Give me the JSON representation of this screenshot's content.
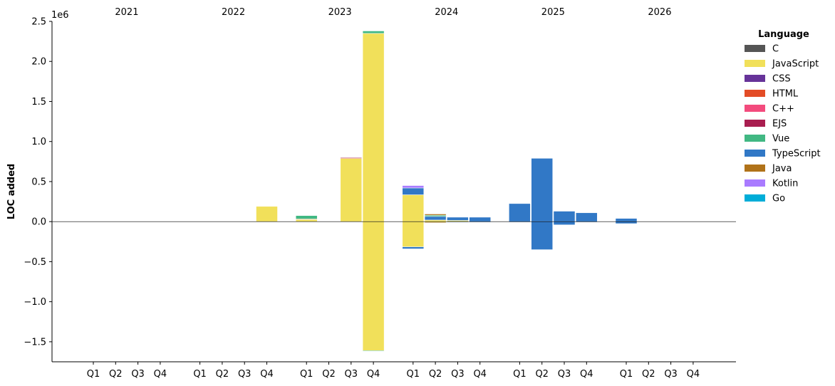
{
  "chart_data": {
    "type": "bar",
    "stacked": true,
    "ylabel": "LOC added",
    "y_offset_label": "1e6",
    "ylim": [
      -1750000,
      2500000
    ],
    "yticks": [
      -1500000,
      -1000000,
      -500000,
      0,
      500000,
      1000000,
      1500000,
      2000000,
      2500000
    ],
    "ytick_labels": [
      "−1.5",
      "−1.0",
      "−0.5",
      "0.0",
      "0.5",
      "1.0",
      "1.5",
      "2.0",
      "2.5"
    ],
    "years": [
      "2021",
      "2022",
      "2023",
      "2024",
      "2025",
      "2026"
    ],
    "quarters": [
      "Q1",
      "Q2",
      "Q3",
      "Q4"
    ],
    "legend": {
      "title": "Language",
      "placement": "outside-right",
      "entries": [
        {
          "name": "C",
          "color": "#555555"
        },
        {
          "name": "JavaScript",
          "color": "#f1e05a"
        },
        {
          "name": "CSS",
          "color": "#663399"
        },
        {
          "name": "HTML",
          "color": "#e34c26"
        },
        {
          "name": "C++",
          "color": "#f34b7d"
        },
        {
          "name": "EJS",
          "color": "#a91e50"
        },
        {
          "name": "Vue",
          "color": "#41b883"
        },
        {
          "name": "TypeScript",
          "color": "#3178c6"
        },
        {
          "name": "Java",
          "color": "#b07219"
        },
        {
          "name": "Kotlin",
          "color": "#a97bff"
        },
        {
          "name": "Go",
          "color": "#00add8"
        }
      ]
    },
    "bars": [
      {
        "year": "2022",
        "quarter": "Q4",
        "positive": [
          {
            "lang": "JavaScript",
            "value": 190000
          }
        ],
        "negative": []
      },
      {
        "year": "2023",
        "quarter": "Q1",
        "positive": [
          {
            "lang": "JavaScript",
            "value": 30000
          },
          {
            "lang": "HTML",
            "value": 3000
          },
          {
            "lang": "Vue",
            "value": 42000
          }
        ],
        "negative": []
      },
      {
        "year": "2023",
        "quarter": "Q3",
        "positive": [
          {
            "lang": "JavaScript",
            "value": 790000
          },
          {
            "lang": "HTML",
            "value": 5000
          },
          {
            "lang": "EJS",
            "value": 8000
          }
        ],
        "negative": []
      },
      {
        "year": "2023",
        "quarter": "Q4",
        "positive": [
          {
            "lang": "JavaScript",
            "value": 2350000
          },
          {
            "lang": "Vue",
            "value": 30000
          }
        ],
        "negative": [
          {
            "lang": "JavaScript",
            "value": -1610000
          },
          {
            "lang": "Vue",
            "value": -8000
          }
        ]
      },
      {
        "year": "2024",
        "quarter": "Q1",
        "positive": [
          {
            "lang": "JavaScript",
            "value": 335000
          },
          {
            "lang": "TypeScript",
            "value": 85000
          },
          {
            "lang": "Kotlin",
            "value": 30000
          }
        ],
        "negative": [
          {
            "lang": "JavaScript",
            "value": -315000
          },
          {
            "lang": "TypeScript",
            "value": -25000
          }
        ]
      },
      {
        "year": "2024",
        "quarter": "Q2",
        "positive": [
          {
            "lang": "JavaScript",
            "value": 20000
          },
          {
            "lang": "TypeScript",
            "value": 45000
          },
          {
            "lang": "Vue",
            "value": 15000
          },
          {
            "lang": "Java",
            "value": 15000
          }
        ],
        "negative": [
          {
            "lang": "JavaScript",
            "value": -10000
          },
          {
            "lang": "Java",
            "value": -8000
          }
        ]
      },
      {
        "year": "2024",
        "quarter": "Q3",
        "positive": [
          {
            "lang": "JavaScript",
            "value": 15000
          },
          {
            "lang": "TypeScript",
            "value": 40000
          }
        ],
        "negative": [
          {
            "lang": "TypeScript",
            "value": -5000
          }
        ]
      },
      {
        "year": "2024",
        "quarter": "Q4",
        "positive": [
          {
            "lang": "TypeScript",
            "value": 55000
          }
        ],
        "negative": [
          {
            "lang": "TypeScript",
            "value": -5000
          }
        ]
      },
      {
        "year": "2025",
        "quarter": "Q1",
        "positive": [
          {
            "lang": "TypeScript",
            "value": 225000
          }
        ],
        "negative": [
          {
            "lang": "TypeScript",
            "value": -5000
          }
        ]
      },
      {
        "year": "2025",
        "quarter": "Q2",
        "positive": [
          {
            "lang": "TypeScript",
            "value": 790000
          }
        ],
        "negative": [
          {
            "lang": "TypeScript",
            "value": -350000
          }
        ]
      },
      {
        "year": "2025",
        "quarter": "Q3",
        "positive": [
          {
            "lang": "TypeScript",
            "value": 130000
          }
        ],
        "negative": [
          {
            "lang": "TypeScript",
            "value": -40000
          }
        ]
      },
      {
        "year": "2025",
        "quarter": "Q4",
        "positive": [
          {
            "lang": "TypeScript",
            "value": 110000
          }
        ],
        "negative": [
          {
            "lang": "TypeScript",
            "value": -5000
          }
        ]
      },
      {
        "year": "2026",
        "quarter": "Q1",
        "positive": [
          {
            "lang": "TypeScript",
            "value": 40000
          }
        ],
        "negative": [
          {
            "lang": "TypeScript",
            "value": -25000
          }
        ]
      }
    ]
  }
}
